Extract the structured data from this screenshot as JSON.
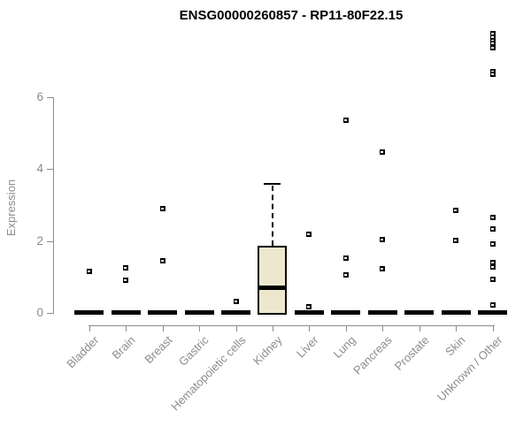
{
  "chart_data": {
    "type": "boxplot",
    "title": "ENSG00000260857 - RP11-80F22.15",
    "ylabel": "Expression",
    "xlabel": "",
    "yticks": [
      0,
      2,
      4,
      6
    ],
    "ylim": [
      0,
      6
    ],
    "grid": false,
    "legend": false,
    "categories": [
      "Bladder",
      "Brain",
      "Breast",
      "Gastric",
      "Hematopoietic cells",
      "Kidney",
      "Liver",
      "Lung",
      "Pancreas",
      "Prostate",
      "Skin",
      "Unknown / Other"
    ],
    "series": [
      {
        "category": "Bladder",
        "box": {
          "median": 0,
          "q1": 0,
          "q3": 0,
          "whisker_low": 0,
          "whisker_high": 0,
          "collapsed": true
        },
        "outliers": [
          1.16
        ]
      },
      {
        "category": "Brain",
        "box": {
          "median": 0,
          "q1": 0,
          "q3": 0,
          "whisker_low": 0,
          "whisker_high": 0,
          "collapsed": true
        },
        "outliers": [
          1.26,
          0.9
        ]
      },
      {
        "category": "Breast",
        "box": {
          "median": 0,
          "q1": 0,
          "q3": 0,
          "whisker_low": 0,
          "whisker_high": 0,
          "collapsed": true
        },
        "outliers": [
          2.9,
          1.44
        ]
      },
      {
        "category": "Gastric",
        "box": {
          "median": 0,
          "q1": 0,
          "q3": 0,
          "whisker_low": 0,
          "whisker_high": 0,
          "collapsed": true
        },
        "outliers": []
      },
      {
        "category": "Hematopoietic cells",
        "box": {
          "median": 0,
          "q1": 0,
          "q3": 0,
          "whisker_low": 0,
          "whisker_high": 0,
          "collapsed": true
        },
        "outliers": [
          0.33
        ]
      },
      {
        "category": "Kidney",
        "box": {
          "median": 0.71,
          "q1": 0,
          "q3": 1.87,
          "whisker_low": 0,
          "whisker_high": 3.59,
          "collapsed": false
        },
        "outliers": []
      },
      {
        "category": "Liver",
        "box": {
          "median": 0,
          "q1": 0,
          "q3": 0,
          "whisker_low": 0,
          "whisker_high": 0,
          "collapsed": true
        },
        "outliers": [
          2.2,
          0.17
        ]
      },
      {
        "category": "Lung",
        "box": {
          "median": 0,
          "q1": 0,
          "q3": 0,
          "whisker_low": 0,
          "whisker_high": 0,
          "collapsed": true
        },
        "outliers": [
          5.37,
          1.53,
          1.06
        ]
      },
      {
        "category": "Pancreas",
        "box": {
          "median": 0,
          "q1": 0,
          "q3": 0,
          "whisker_low": 0,
          "whisker_high": 0,
          "collapsed": true
        },
        "outliers": [
          4.47,
          2.05,
          1.22
        ]
      },
      {
        "category": "Prostate",
        "box": {
          "median": 0,
          "q1": 0,
          "q3": 0,
          "whisker_low": 0,
          "whisker_high": 0,
          "collapsed": true
        },
        "outliers": []
      },
      {
        "category": "Skin",
        "box": {
          "median": 0,
          "q1": 0,
          "q3": 0,
          "whisker_low": 0,
          "whisker_high": 0,
          "collapsed": true
        },
        "outliers": [
          2.86,
          2.01
        ]
      },
      {
        "category": "Unknown / Other",
        "box": {
          "median": 0,
          "q1": 0,
          "q3": 0,
          "whisker_low": 0,
          "whisker_high": 0,
          "collapsed": true
        },
        "outliers": [
          7.76,
          7.67,
          7.58,
          7.49,
          7.38,
          6.72,
          6.63,
          2.66,
          2.33,
          1.93,
          1.41,
          1.29,
          0.93,
          0.22
        ]
      }
    ],
    "colors": {
      "box_fill": "#EDE7CE",
      "box_border": "#000000",
      "median": "#000000",
      "outlier": "#000000",
      "axis": "#8c8c8c",
      "tick_label": "#8c8c8c",
      "title": "#000000",
      "background": "#ffffff"
    }
  }
}
